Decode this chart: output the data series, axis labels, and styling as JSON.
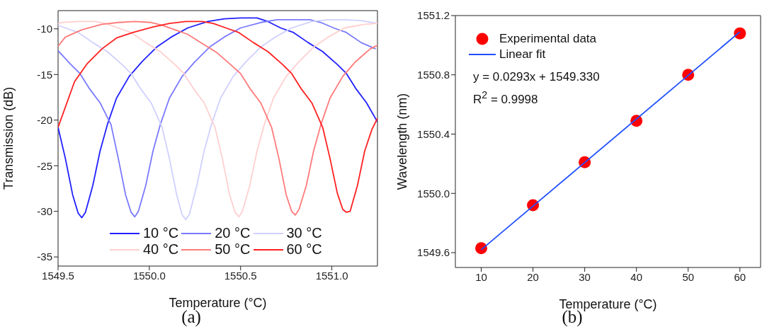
{
  "chart_data": [
    {
      "type": "line",
      "xlabel": "Temperature (°C)",
      "ylabel": "Transmission (dB)",
      "xlim": [
        1549.5,
        1551.25
      ],
      "ylim": [
        -36,
        -8
      ],
      "xticks": [
        1549.5,
        {
          "value": 1550,
          "label": "1550.0"
        },
        1550.5,
        {
          "value": 1551,
          "label": "1551.0"
        }
      ],
      "yticks": [
        -35,
        -30,
        -25,
        -20,
        -15,
        -10
      ],
      "legend": "bottom",
      "marker": "none",
      "line_style": "solid",
      "annotations": [
        "(a)"
      ],
      "series": [
        {
          "name": "10 °C",
          "color": "#2020ff",
          "x": [
            1549.5,
            1549.54,
            1549.58,
            1549.61,
            1549.63,
            1549.65,
            1549.69,
            1549.73,
            1549.77,
            1549.82,
            1549.89,
            1549.96,
            1550.04,
            1550.12,
            1550.21,
            1550.32,
            1550.41,
            1550.5,
            1550.59,
            1550.65,
            1550.72,
            1550.79,
            1550.87,
            1550.95,
            1551.03,
            1551.08,
            1551.13,
            1551.19,
            1551.25
          ],
          "values": [
            -20.8,
            -24.2,
            -28.2,
            -30.2,
            -30.7,
            -30.1,
            -27.2,
            -23.4,
            -20.5,
            -17.6,
            -15.2,
            -13.6,
            -12.0,
            -10.9,
            -9.9,
            -9.2,
            -8.9,
            -8.8,
            -8.8,
            -9.2,
            -9.9,
            -10.4,
            -11.5,
            -12.5,
            -13.9,
            -14.9,
            -16.5,
            -18.1,
            -20.2
          ]
        },
        {
          "name": "20 °C",
          "color": "#7a7aff",
          "x": [
            1549.5,
            1549.57,
            1549.62,
            1549.67,
            1549.73,
            1549.79,
            1549.83,
            1549.87,
            1549.9,
            1549.92,
            1549.94,
            1549.98,
            1550.02,
            1550.06,
            1550.11,
            1550.18,
            1550.25,
            1550.33,
            1550.41,
            1550.5,
            1550.61,
            1550.7,
            1550.79,
            1550.88,
            1550.94,
            1551.01,
            1551.08,
            1551.16,
            1551.24
          ],
          "values": [
            -12.4,
            -13.9,
            -14.9,
            -16.5,
            -18.1,
            -20.5,
            -24.2,
            -28.2,
            -30.1,
            -30.6,
            -30.0,
            -27.2,
            -23.4,
            -20.5,
            -17.6,
            -15.2,
            -13.6,
            -12.0,
            -10.9,
            -9.9,
            -9.3,
            -9.0,
            -9.0,
            -9.0,
            -9.3,
            -9.9,
            -10.4,
            -11.5,
            -12.2
          ]
        },
        {
          "name": "30 °C",
          "color": "#d0d0ff",
          "x": [
            1549.5,
            1549.54,
            1549.61,
            1549.69,
            1549.77,
            1549.85,
            1549.9,
            1549.95,
            1550.01,
            1550.07,
            1550.11,
            1550.15,
            1550.18,
            1550.2,
            1550.22,
            1550.26,
            1550.3,
            1550.34,
            1550.39,
            1550.46,
            1550.53,
            1550.61,
            1550.69,
            1550.78,
            1550.89,
            1550.98,
            1551.07,
            1551.16,
            1551.22,
            1551.25
          ],
          "values": [
            -9.6,
            -9.9,
            -10.4,
            -11.5,
            -12.5,
            -13.9,
            -14.9,
            -16.5,
            -18.1,
            -20.8,
            -24.2,
            -28.2,
            -30.4,
            -30.9,
            -30.3,
            -27.2,
            -23.4,
            -20.5,
            -17.6,
            -15.2,
            -13.6,
            -12.0,
            -10.9,
            -9.9,
            -9.2,
            -9.0,
            -9.0,
            -9.1,
            -9.3,
            -9.4
          ]
        },
        {
          "name": "40 °C",
          "color": "#ffd0d0",
          "x": [
            1549.5,
            1549.52,
            1549.61,
            1549.7,
            1549.76,
            1549.83,
            1549.9,
            1549.98,
            1550.06,
            1550.14,
            1550.19,
            1550.24,
            1550.3,
            1550.36,
            1550.4,
            1550.44,
            1550.47,
            1550.49,
            1550.51,
            1550.55,
            1550.59,
            1550.63,
            1550.68,
            1550.75,
            1550.82,
            1550.9,
            1550.98,
            1551.07,
            1551.18,
            1551.25
          ],
          "values": [
            -9.4,
            -9.3,
            -9.2,
            -9.2,
            -9.4,
            -9.9,
            -10.4,
            -11.5,
            -12.5,
            -13.9,
            -14.9,
            -16.5,
            -18.1,
            -20.8,
            -24.2,
            -28.2,
            -30.1,
            -30.6,
            -30.0,
            -27.2,
            -23.4,
            -20.5,
            -17.6,
            -15.2,
            -13.6,
            -12.0,
            -10.9,
            -9.9,
            -9.5,
            -9.4
          ]
        },
        {
          "name": "50 °C",
          "color": "#ff7a7a",
          "x": [
            1549.5,
            1549.54,
            1549.63,
            1549.74,
            1549.83,
            1549.92,
            1550.01,
            1550.07,
            1550.14,
            1550.21,
            1550.29,
            1550.37,
            1550.45,
            1550.5,
            1550.55,
            1550.61,
            1550.67,
            1550.71,
            1550.75,
            1550.78,
            1550.8,
            1550.82,
            1550.86,
            1550.9,
            1550.94,
            1550.99,
            1551.06,
            1551.13,
            1551.21,
            1551.25
          ],
          "values": [
            -11.9,
            -10.9,
            -10.1,
            -9.5,
            -9.3,
            -9.2,
            -9.3,
            -9.6,
            -10.1,
            -10.6,
            -11.6,
            -12.6,
            -14.0,
            -14.9,
            -16.5,
            -18.1,
            -20.8,
            -24.2,
            -28.2,
            -30.0,
            -30.4,
            -29.8,
            -27.2,
            -23.4,
            -20.5,
            -17.6,
            -15.2,
            -13.6,
            -12.2,
            -11.8
          ]
        },
        {
          "name": "60 °C",
          "color": "#ff2020",
          "x": [
            1549.5,
            1549.59,
            1549.66,
            1549.74,
            1549.82,
            1549.91,
            1550.02,
            1550.11,
            1550.2,
            1550.29,
            1550.35,
            1550.42,
            1550.49,
            1550.57,
            1550.65,
            1550.73,
            1550.78,
            1550.83,
            1550.89,
            1550.95,
            1550.99,
            1551.03,
            1551.06,
            1551.08,
            1551.1,
            1551.14,
            1551.18,
            1551.22,
            1551.25
          ],
          "values": [
            -20.8,
            -15.8,
            -13.8,
            -12.2,
            -11.0,
            -10.4,
            -9.8,
            -9.4,
            -9.2,
            -9.2,
            -9.4,
            -9.9,
            -10.4,
            -11.5,
            -12.5,
            -13.9,
            -14.9,
            -16.5,
            -18.1,
            -20.8,
            -24.2,
            -28.0,
            -29.8,
            -30.1,
            -30.0,
            -27.2,
            -23.4,
            -21.0,
            -19.8
          ]
        }
      ]
    },
    {
      "type": "scatter",
      "xlabel": "Temperature (°C)",
      "ylabel": "Wavelength (nm)",
      "xlim": [
        5,
        64
      ],
      "ylim": [
        1549.5,
        1551.2
      ],
      "xticks": [
        10,
        20,
        30,
        40,
        50,
        60
      ],
      "yticks": [
        1549.6,
        {
          "value": 1550,
          "label": "1550.0"
        },
        1550.4,
        1550.8,
        1551.2
      ],
      "legend": "top left",
      "annotations": [
        "y = 0.0293x + 1549.330",
        "R$^{2}$ = 0.9998",
        "(b)"
      ],
      "series": [
        {
          "name": "Experimental data",
          "marker": "circle",
          "color": "#ff0000",
          "x": [
            10,
            20,
            30,
            40,
            50,
            60
          ],
          "values": [
            1549.63,
            1549.92,
            1550.21,
            1550.49,
            1550.8,
            1551.08
          ]
        },
        {
          "name": "Linear fit",
          "type": "line",
          "marker": "none",
          "line_style": "solid",
          "color": "#1f4fff",
          "x": [
            10,
            60
          ],
          "values": [
            1549.62,
            1551.09
          ]
        }
      ]
    }
  ]
}
